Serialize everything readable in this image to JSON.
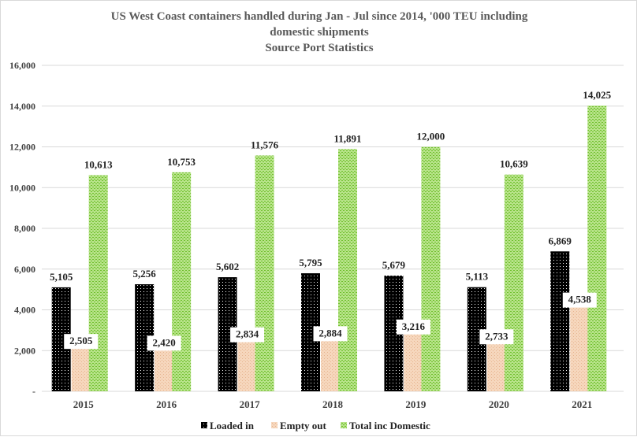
{
  "chart_data": {
    "type": "bar",
    "title": [
      "US West Coast containers handled during Jan - Jul since 2014, '000 TEU including",
      "domestic shipments",
      "Source Port Statistics"
    ],
    "categories": [
      "2015",
      "2016",
      "2017",
      "2018",
      "2019",
      "2020",
      "2021"
    ],
    "series": [
      {
        "name": "Loaded in",
        "values": [
          5105,
          5256,
          5602,
          5795,
          5679,
          5113,
          6869
        ],
        "labels": [
          "5,105",
          "5,256",
          "5,602",
          "5,795",
          "5,679",
          "5,113",
          "6,869"
        ],
        "color": "#000000"
      },
      {
        "name": "Empty out",
        "values": [
          2505,
          2420,
          2834,
          2884,
          3216,
          2733,
          4538
        ],
        "labels": [
          "2,505",
          "2,420",
          "2,834",
          "2,884",
          "3,216",
          "2,733",
          "4,538"
        ],
        "color": "#f4cfb0"
      },
      {
        "name": "Total inc Domestic",
        "values": [
          10613,
          10753,
          11576,
          11891,
          12000,
          10639,
          14025
        ],
        "labels": [
          "10,613",
          "10,753",
          "11,576",
          "11,891",
          "12,000",
          "10,639",
          "14,025"
        ],
        "color": "#8fd14f"
      }
    ],
    "y_ticks": [
      0,
      2000,
      4000,
      6000,
      8000,
      10000,
      12000,
      14000,
      16000
    ],
    "y_tick_labels": [
      "-",
      "2,000",
      "4,000",
      "6,000",
      "8,000",
      "10,000",
      "12,000",
      "14,000",
      "16,000"
    ],
    "ylim": [
      0,
      16000
    ],
    "grid": true,
    "legend": "bottom"
  }
}
